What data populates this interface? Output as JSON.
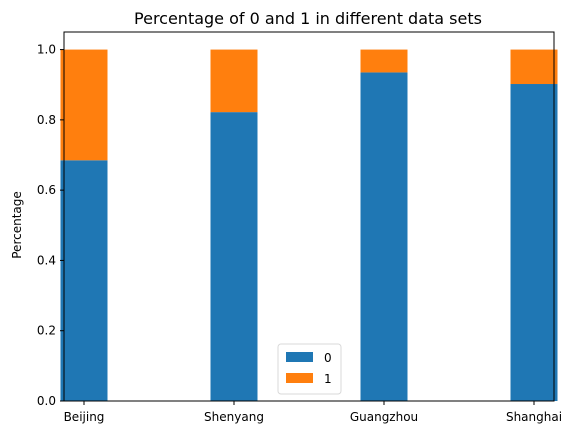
{
  "chart_data": {
    "type": "bar",
    "stacked": true,
    "title": "Percentage of 0 and 1 in different data sets",
    "xlabel": "",
    "ylabel": "Percentage",
    "categories": [
      "Beijing",
      "Shenyang",
      "Guangzhou",
      "Shanghai"
    ],
    "series": [
      {
        "name": "0",
        "color": "#1f77b4",
        "values": [
          0.685,
          0.822,
          0.935,
          0.902
        ]
      },
      {
        "name": "1",
        "color": "#ff7f0e",
        "values": [
          0.315,
          0.178,
          0.065,
          0.098
        ]
      }
    ],
    "ylim": [
      0,
      1.05
    ],
    "yticks": [
      0.0,
      0.2,
      0.4,
      0.6,
      0.8,
      1.0
    ],
    "ytick_labels": [
      "0.0",
      "0.2",
      "0.4",
      "0.6",
      "0.8",
      "1.0"
    ],
    "grid": false,
    "legend_position": "bottom-center"
  }
}
